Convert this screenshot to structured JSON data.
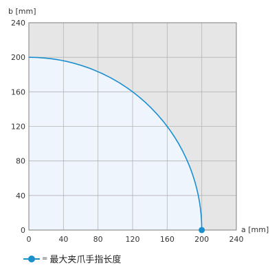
{
  "chart_data": {
    "type": "area",
    "xlabel": "a [mm]",
    "ylabel": "b [mm]",
    "xlim": [
      0,
      240
    ],
    "ylim": [
      0,
      240
    ],
    "xticks": [
      "0",
      "40",
      "80",
      "120",
      "160",
      "200",
      "240"
    ],
    "yticks": [
      "0",
      "40",
      "80",
      "120",
      "160",
      "200",
      "240"
    ],
    "grid": true,
    "series": [
      {
        "name": "最大夹爪手指长度",
        "curve": "quarter-circle",
        "radius": 200,
        "x": [
          0,
          40,
          80,
          120,
          160,
          200
        ],
        "y": [
          200,
          196,
          183.3,
          160,
          120,
          0
        ],
        "marker_points": [
          [
            200,
            0
          ]
        ]
      }
    ],
    "legend": {
      "position": "bottom-left",
      "prefix": "="
    },
    "colors": {
      "line": "#1a8fd0",
      "inside_fill": "#eef5fc",
      "outside_fill": "#e6e6e6",
      "grid": "#b4b4b4"
    }
  }
}
